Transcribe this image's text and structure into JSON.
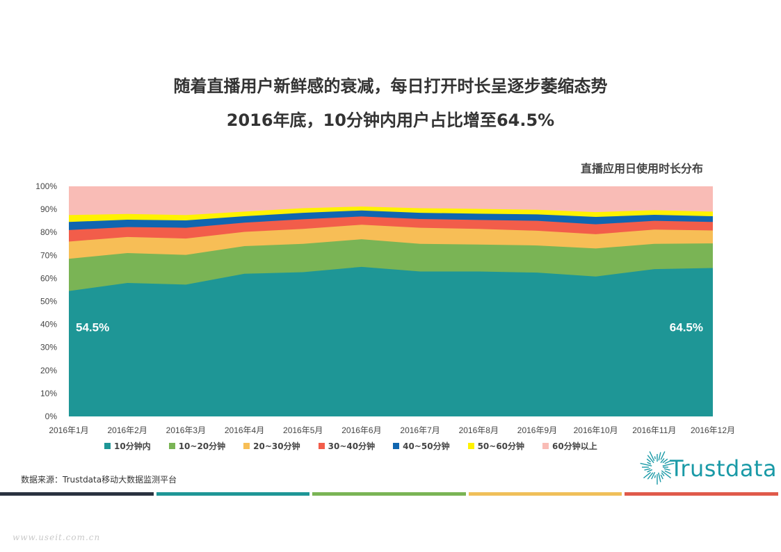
{
  "header": {
    "title_line1": "随着直播用户新鲜感的衰减，每日打开时长呈逐步萎缩态势",
    "title_line2": "2016年底，10分钟内用户占比增至64.5%"
  },
  "chart_data": {
    "type": "area",
    "stacked": true,
    "percent": true,
    "title": "直播应用日使用时长分布",
    "xlabel": "",
    "ylabel": "",
    "ylim": [
      0,
      100
    ],
    "y_ticks": [
      "0%",
      "10%",
      "20%",
      "30%",
      "40%",
      "50%",
      "60%",
      "70%",
      "80%",
      "90%",
      "100%"
    ],
    "grid": false,
    "legend_position": "bottom",
    "categories": [
      "2016年1月",
      "2016年2月",
      "2016年3月",
      "2016年4月",
      "2016年5月",
      "2016年6月",
      "2016年7月",
      "2016年8月",
      "2016年9月",
      "2016年10月",
      "2016年11月",
      "2016年12月"
    ],
    "series": [
      {
        "name": "10分钟内",
        "color": "#1e9696",
        "values": [
          54.5,
          58.0,
          57.3,
          62.0,
          62.7,
          65.0,
          63.0,
          63.0,
          62.5,
          60.8,
          64.0,
          64.5
        ]
      },
      {
        "name": "10~20分钟",
        "color": "#7ab455",
        "values": [
          14.0,
          13.0,
          12.9,
          12.0,
          12.3,
          12.0,
          12.0,
          11.7,
          11.8,
          12.2,
          11.0,
          10.7
        ]
      },
      {
        "name": "20~30分钟",
        "color": "#f7be56",
        "values": [
          7.5,
          7.0,
          7.1,
          6.2,
          6.5,
          6.3,
          7.0,
          6.8,
          6.4,
          6.2,
          6.2,
          5.6
        ]
      },
      {
        "name": "30~40分钟",
        "color": "#f25d4a",
        "values": [
          5.0,
          4.3,
          4.7,
          4.0,
          4.2,
          3.6,
          3.8,
          3.9,
          4.3,
          4.3,
          3.8,
          3.7
        ]
      },
      {
        "name": "40~50分钟",
        "color": "#1066b0",
        "values": [
          3.5,
          3.2,
          3.2,
          2.8,
          2.8,
          2.6,
          2.7,
          2.7,
          2.8,
          3.2,
          2.6,
          2.5
        ]
      },
      {
        "name": "50~60分钟",
        "color": "#fff200",
        "values": [
          3.0,
          2.5,
          2.3,
          2.0,
          2.0,
          1.7,
          2.0,
          2.1,
          2.0,
          2.1,
          2.0,
          2.0
        ]
      },
      {
        "name": "60分钟以上",
        "color": "#f9bcb6",
        "values": [
          12.5,
          12.0,
          12.5,
          11.0,
          9.5,
          8.8,
          9.5,
          9.8,
          10.2,
          11.2,
          10.4,
          11.0
        ]
      }
    ],
    "annotations": [
      {
        "text": "54.5%",
        "category": "2016年1月",
        "series": "10分钟内"
      },
      {
        "text": "64.5%",
        "category": "2016年12月",
        "series": "10分钟内"
      }
    ]
  },
  "footer": {
    "source": "数据来源：Trustdata移动大数据监测平台",
    "logo_text": "Trustdata",
    "watermark": "www.useit.com.cn",
    "bar_colors": [
      "#2a3240",
      "#1e9696",
      "#7ab455",
      "#f0c05a",
      "#e05a4a"
    ]
  }
}
